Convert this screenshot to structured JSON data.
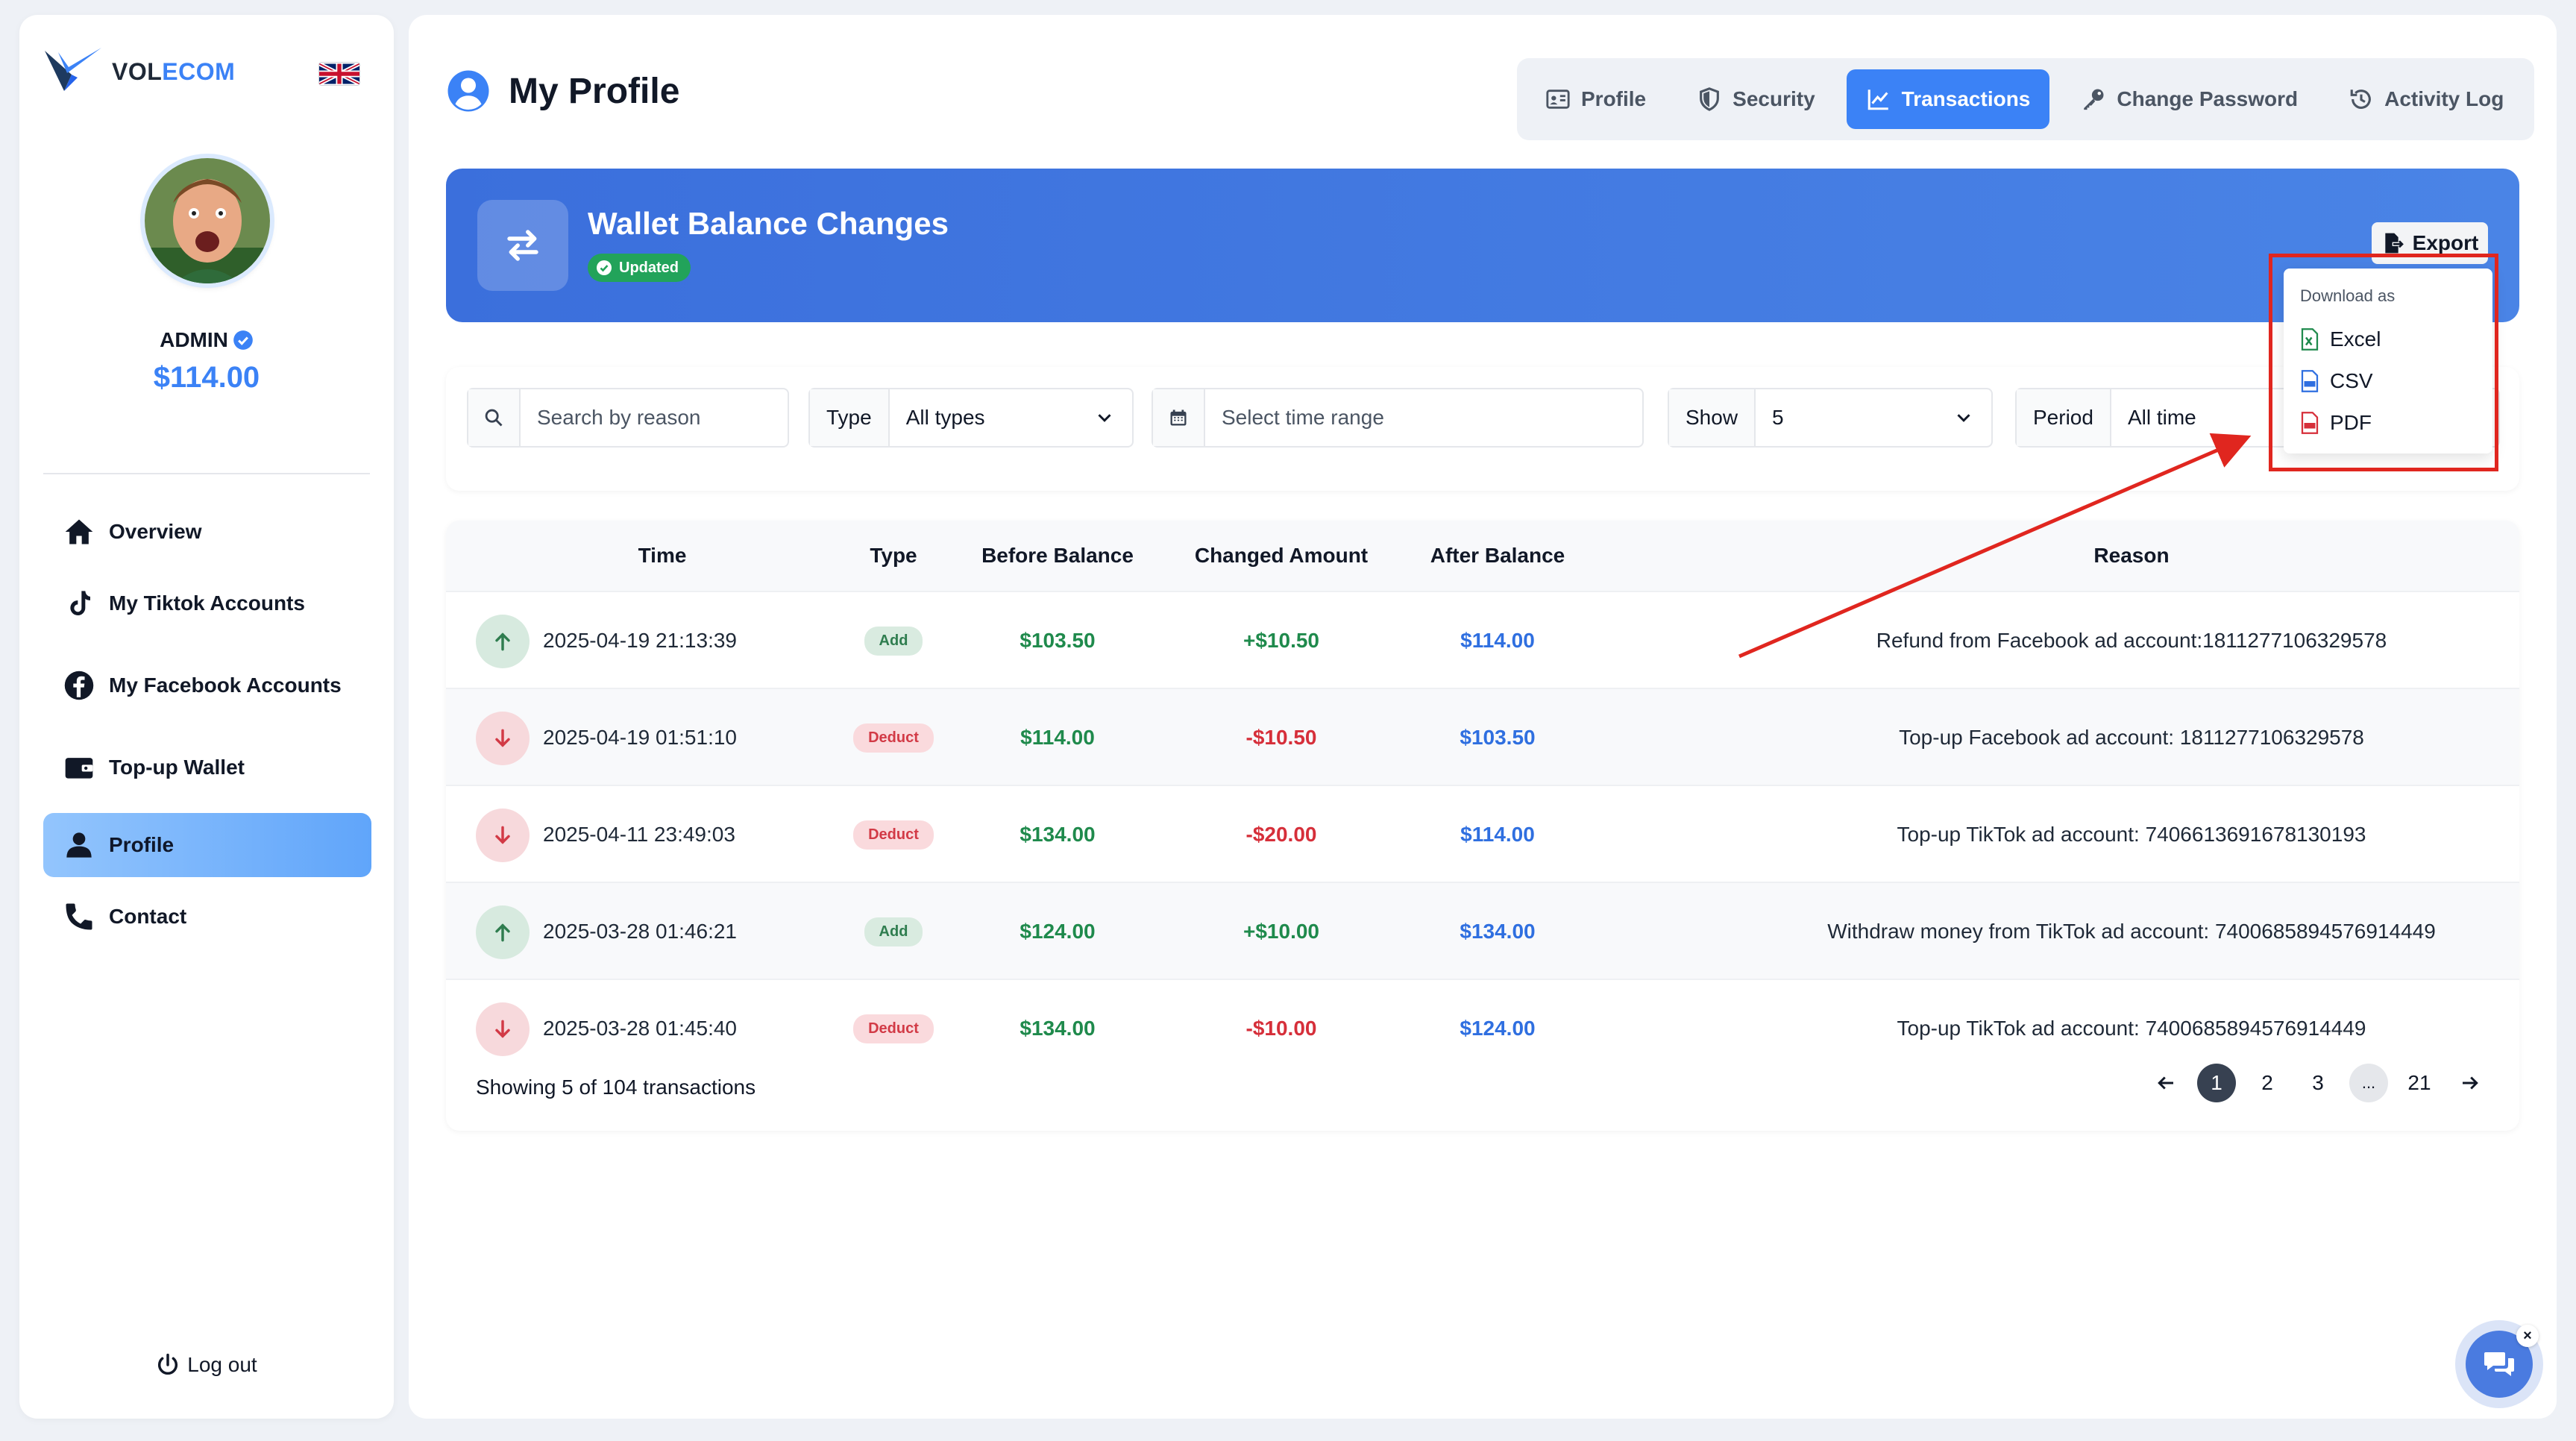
{
  "brand": {
    "name_part1": "VOL",
    "name_part2": "ECOM",
    "language": "English (UK)"
  },
  "user": {
    "name": "ADMIN",
    "balance": "$114.00"
  },
  "sidebar": {
    "items": [
      {
        "label": "Overview",
        "icon": "home-icon"
      },
      {
        "label": "My Tiktok Accounts",
        "icon": "tiktok-icon"
      },
      {
        "label": "My Facebook Accounts",
        "icon": "facebook-icon"
      },
      {
        "label": "Top-up Wallet",
        "icon": "wallet-icon"
      },
      {
        "label": "Profile",
        "icon": "user-icon",
        "active": true
      },
      {
        "label": "Contact",
        "icon": "phone-icon"
      }
    ],
    "logout_label": "Log out"
  },
  "header": {
    "title": "My Profile",
    "tabs": [
      {
        "label": "Profile",
        "icon": "id-card-icon"
      },
      {
        "label": "Security",
        "icon": "shield-icon"
      },
      {
        "label": "Transactions",
        "icon": "chart-line-icon",
        "active": true
      },
      {
        "label": "Change Password",
        "icon": "key-icon"
      },
      {
        "label": "Activity Log",
        "icon": "history-icon"
      }
    ]
  },
  "banner": {
    "title": "Wallet Balance Changes",
    "badge": "Updated",
    "export_label": "Export"
  },
  "export_menu": {
    "title": "Download as",
    "options": [
      {
        "label": "Excel",
        "icon": "excel-file-icon",
        "color": "#1f8a4c"
      },
      {
        "label": "CSV",
        "icon": "csv-file-icon",
        "color": "#2f6fe0"
      },
      {
        "label": "PDF",
        "icon": "pdf-file-icon",
        "color": "#d62f3a"
      }
    ]
  },
  "filters": {
    "search_placeholder": "Search by reason",
    "type_label": "Type",
    "type_value": "All types",
    "time_placeholder": "Select time range",
    "show_label": "Show",
    "show_value": "5",
    "period_label": "Period",
    "period_value": "All time"
  },
  "table": {
    "columns": [
      "Time",
      "Type",
      "Before Balance",
      "Changed Amount",
      "After Balance",
      "Reason"
    ],
    "rows": [
      {
        "direction": "up",
        "time": "2025-04-19 21:13:39",
        "type": "Add",
        "before": "$103.50",
        "change": "+$10.50",
        "after": "$114.00",
        "reason": "Refund from Facebook ad account:1811277106329578"
      },
      {
        "direction": "down",
        "time": "2025-04-19 01:51:10",
        "type": "Deduct",
        "before": "$114.00",
        "change": "-$10.50",
        "after": "$103.50",
        "reason": "Top-up Facebook ad account: 1811277106329578"
      },
      {
        "direction": "down",
        "time": "2025-04-11 23:49:03",
        "type": "Deduct",
        "before": "$134.00",
        "change": "-$20.00",
        "after": "$114.00",
        "reason": "Top-up TikTok ad account: 7406613691678130193"
      },
      {
        "direction": "up",
        "time": "2025-03-28 01:46:21",
        "type": "Add",
        "before": "$124.00",
        "change": "+$10.00",
        "after": "$134.00",
        "reason": "Withdraw money from TikTok ad account: 7400685894576914449"
      },
      {
        "direction": "down",
        "time": "2025-03-28 01:45:40",
        "type": "Deduct",
        "before": "$134.00",
        "change": "-$10.00",
        "after": "$124.00",
        "reason": "Top-up TikTok ad account: 7400685894576914449"
      }
    ],
    "summary": "Showing 5 of 104 transactions",
    "pages": [
      "1",
      "2",
      "3",
      "...",
      "21"
    ],
    "current_page": "1"
  },
  "colors": {
    "accent": "#3b82f6",
    "add": "#1f8a4c",
    "deduct": "#d62f3a",
    "annotation": "#e0261f"
  }
}
